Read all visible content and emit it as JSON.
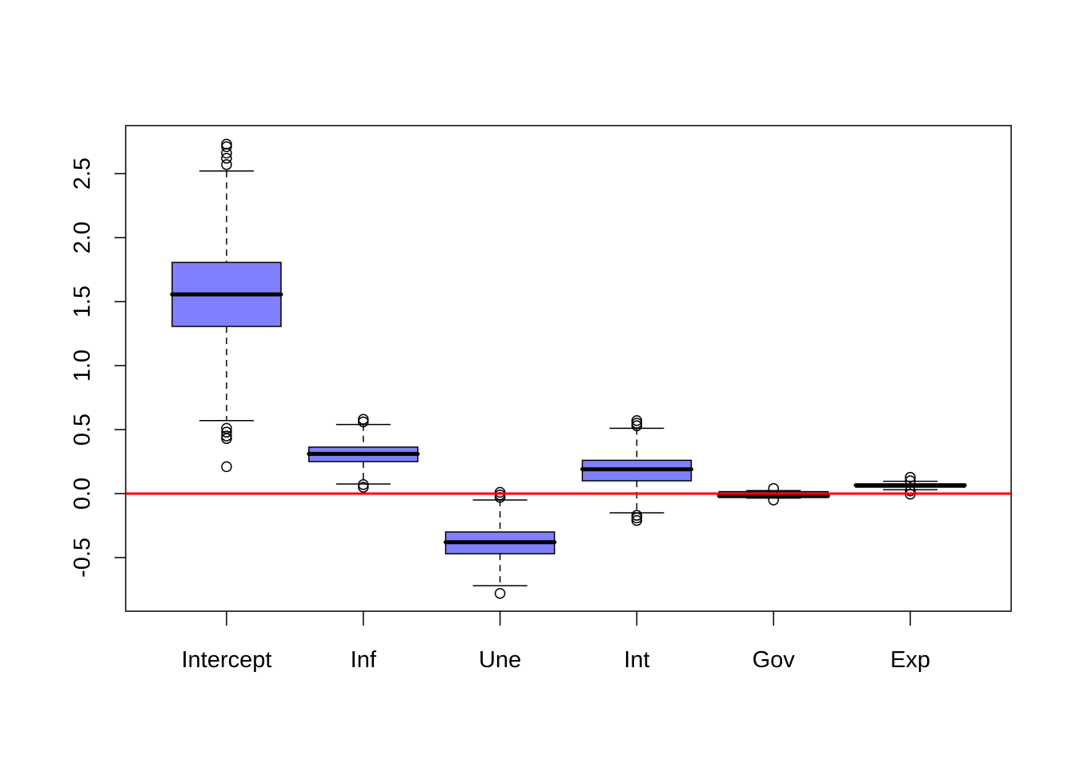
{
  "chart_data": {
    "type": "boxplot",
    "title": "",
    "xlabel": "",
    "ylabel": "",
    "ylim": [
      -0.919,
      2.875
    ],
    "yticks": [
      -0.5,
      0.0,
      0.5,
      1.0,
      1.5,
      2.0,
      2.5
    ],
    "ytick_labels": [
      "-0.5",
      "0.0",
      "0.5",
      "1.0",
      "1.5",
      "2.0",
      "2.5"
    ],
    "categories": [
      "Intercept",
      "Inf",
      "Une",
      "Int",
      "Gov",
      "Exp"
    ],
    "box_color": "#8080FF",
    "reference_line": {
      "y": 0,
      "color": "#FF0000"
    },
    "boxes": [
      {
        "name": "Intercept",
        "whisker_low": 0.57,
        "q1": 1.306,
        "median": 1.556,
        "q3": 1.806,
        "whisker_high": 2.52,
        "outliers": [
          2.73,
          2.71,
          2.66,
          2.62,
          2.57,
          0.51,
          0.48,
          0.45,
          0.43,
          0.21
        ]
      },
      {
        "name": "Inf",
        "whisker_low": 0.075,
        "q1": 0.25,
        "median": 0.31,
        "q3": 0.363,
        "whisker_high": 0.54,
        "outliers": [
          0.58,
          0.56,
          0.07,
          0.05
        ]
      },
      {
        "name": "Une",
        "whisker_low": -0.72,
        "q1": -0.47,
        "median": -0.38,
        "q3": -0.3,
        "whisker_high": -0.05,
        "outliers": [
          0.01,
          -0.01,
          -0.03,
          -0.78
        ]
      },
      {
        "name": "Int",
        "whisker_low": -0.15,
        "q1": 0.1,
        "median": 0.19,
        "q3": 0.26,
        "whisker_high": 0.51,
        "outliers": [
          0.57,
          0.55,
          0.53,
          -0.17,
          -0.19,
          -0.21
        ]
      },
      {
        "name": "Gov",
        "whisker_low": -0.035,
        "q1": -0.03,
        "median": -0.02,
        "q3": 0.015,
        "whisker_high": 0.023,
        "outliers": [
          0.04,
          -0.05
        ]
      },
      {
        "name": "Exp",
        "whisker_low": 0.03,
        "q1": 0.05,
        "median": 0.065,
        "q3": 0.075,
        "whisker_high": 0.096,
        "outliers": [
          0.127,
          0.1,
          0.02,
          -0.005
        ]
      }
    ]
  }
}
